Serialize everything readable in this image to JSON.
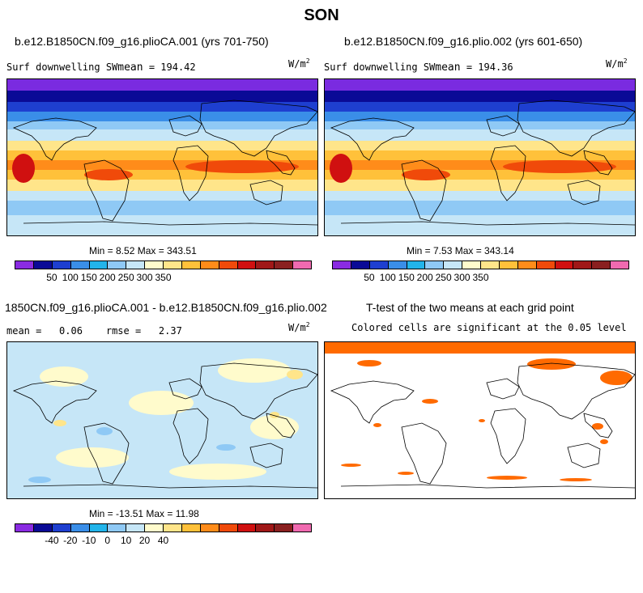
{
  "title": "SON",
  "panels": {
    "top_left": {
      "title": "b.e12.B1850CN.f09_g16.plioCA.001 (yrs 701-750)",
      "var_prefix": "Surf downwelling SW",
      "mean_sub": "mean",
      "mean_value": "= 194.42",
      "units": "W/m",
      "units_sup": "2",
      "minmax": "Min =    8.52 Max = 343.51"
    },
    "top_right": {
      "title": "b.e12.B1850CN.f09_g16.plio.002 (yrs 601-650)",
      "var_prefix": "Surf downwelling SW",
      "mean_sub": "mean",
      "mean_value": "= 194.36",
      "units": "W/m",
      "units_sup": "2",
      "minmax": "Min =    7.53 Max = 343.14"
    },
    "bottom_left": {
      "title": "1850CN.f09_g16.plioCA.001 - b.e12.B1850CN.f09_g16.plio.002",
      "mean_label": "mean =",
      "mean_value": "0.06",
      "rmse_label": "rmse =",
      "rmse_value": "2.37",
      "units": "W/m",
      "units_sup": "2",
      "minmax": "Min = -13.51 Max =  11.98"
    },
    "bottom_right": {
      "title": "T-test of the two means at each grid point",
      "subtitle": "Colored cells are significant at the 0.05 level"
    }
  },
  "colorbars": {
    "abs_ticks": [
      "50",
      "100",
      "150",
      "200",
      "250",
      "300",
      "350"
    ],
    "diff_ticks": [
      "-40",
      "-20",
      "-10",
      "0",
      "10",
      "20",
      "40"
    ],
    "colors": [
      "#8a2be2",
      "#0a0a96",
      "#1e3fd0",
      "#3a8ee8",
      "#22b4ea",
      "#8fc9f5",
      "#c6e6f7",
      "#fffbcc",
      "#ffe58a",
      "#ffc13a",
      "#ff8c1a",
      "#f04a0a",
      "#d01010",
      "#a01818",
      "#8a2020",
      "#f06ab0"
    ],
    "significance_color": "#ff6a00"
  }
}
